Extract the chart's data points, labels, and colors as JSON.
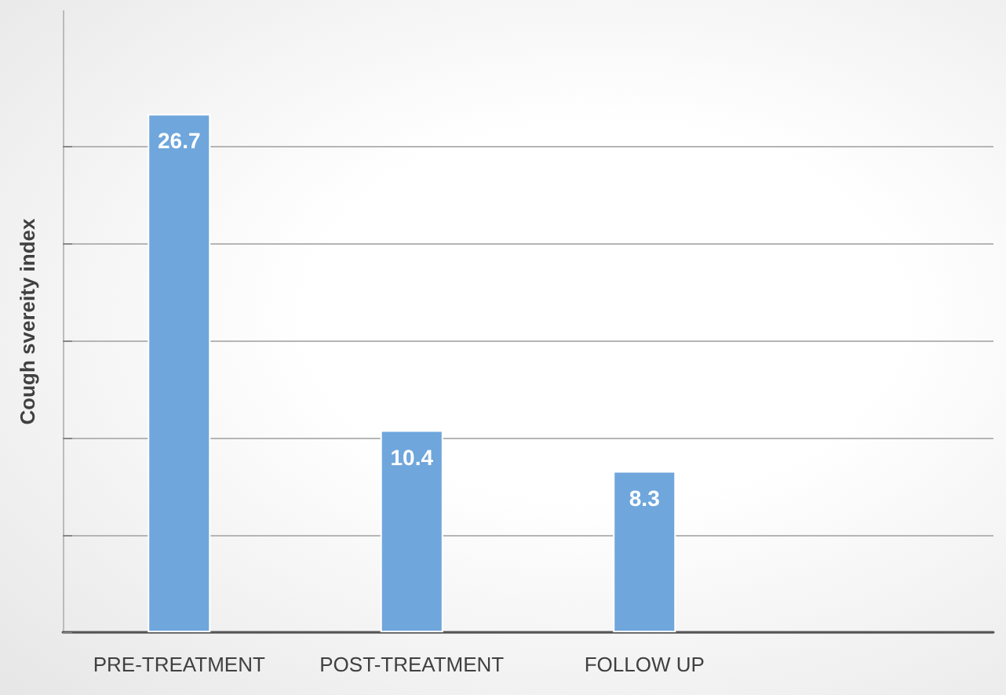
{
  "chart_data": {
    "type": "bar",
    "ylabel": "Cough svereity index",
    "categories": [
      "PRE-TREATMENT",
      "POST-TREATMENT",
      "FOLLOW UP",
      null
    ],
    "values": [
      26.7,
      10.4,
      8.3,
      null
    ],
    "color": "#6fa6dc",
    "ylim": [
      0,
      32
    ],
    "yticks": [
      {
        "value": 0,
        "label": null
      },
      {
        "value": 5,
        "label": null
      },
      {
        "value": 10,
        "label": null
      },
      {
        "value": 15,
        "label": null
      },
      {
        "value": 20,
        "label": null
      },
      {
        "value": 25,
        "label": null
      }
    ],
    "grid": "y",
    "tick_labels": "x",
    "data_labels": true
  }
}
